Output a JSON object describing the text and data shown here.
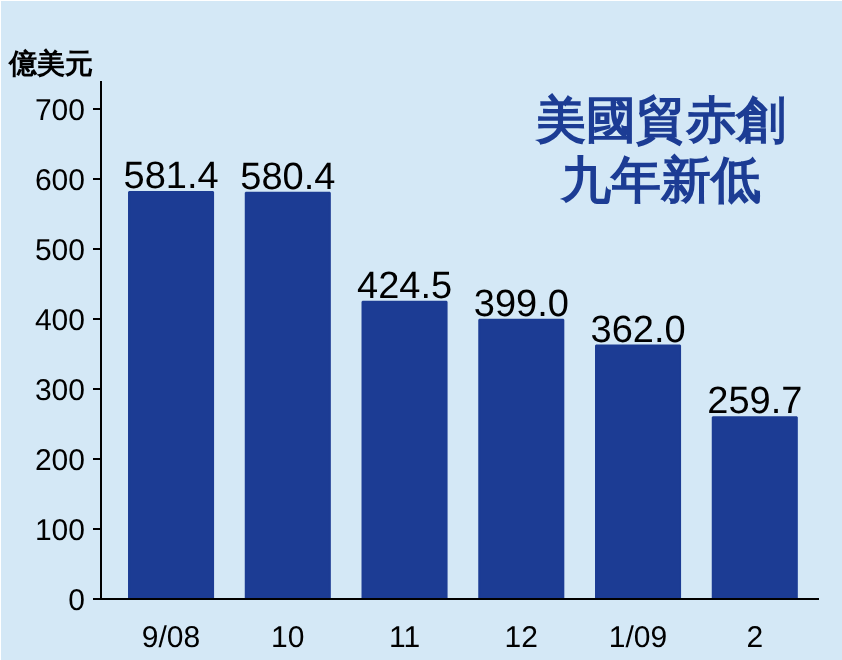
{
  "chart_data": {
    "type": "bar",
    "title": "美國貿赤創",
    "subtitle": "九年新低",
    "ylabel": "億美元",
    "categories": [
      "9/08",
      "10",
      "11",
      "12",
      "1/09",
      "2"
    ],
    "values": [
      581.4,
      580.4,
      424.5,
      399.0,
      362.0,
      259.7
    ],
    "value_labels": [
      "581.4",
      "580.4",
      "424.5",
      "399.0",
      "362.0",
      "259.7"
    ],
    "color": "#1c3c94",
    "ylim": [
      0,
      740
    ],
    "yticks": [
      0,
      100,
      200,
      300,
      400,
      500,
      600,
      700
    ],
    "grid": false
  }
}
